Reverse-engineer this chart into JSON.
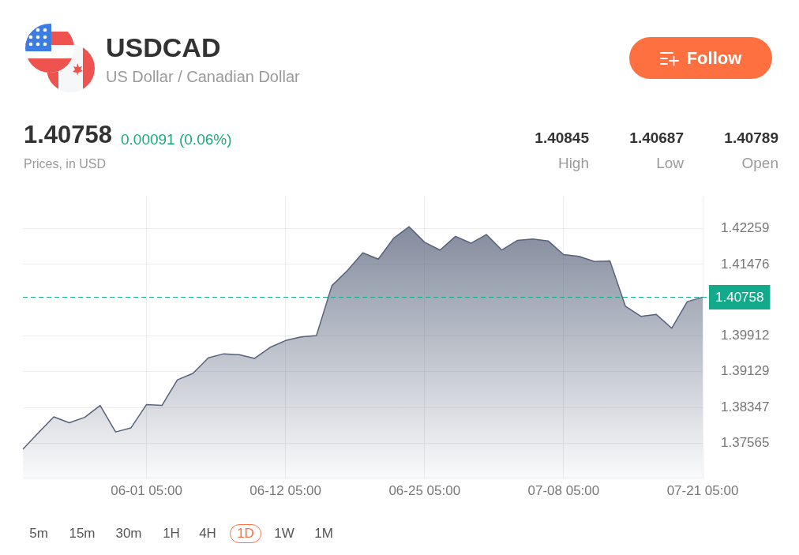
{
  "chart_data": {
    "type": "area",
    "title": "USDCAD",
    "subtitle": "US Dollar / Canadian Dollar",
    "categories": [
      null,
      null,
      null,
      null,
      null,
      null,
      null,
      null,
      "06-01 05:00",
      null,
      null,
      null,
      null,
      null,
      null,
      null,
      null,
      "06-12 05:00",
      null,
      null,
      null,
      null,
      null,
      null,
      null,
      null,
      "06-25 05:00",
      null,
      null,
      null,
      null,
      null,
      null,
      null,
      null,
      "07-08 05:00",
      null,
      null,
      null,
      null,
      null,
      null,
      null,
      null,
      "07-21 05:00"
    ],
    "series": [
      {
        "color": "#56627a",
        "values": [
          1.3743,
          1.3779,
          1.3814,
          1.3801,
          1.3813,
          1.3839,
          1.3781,
          1.379,
          1.3841,
          1.3839,
          1.3895,
          1.3909,
          1.3943,
          1.3952,
          1.395,
          1.3942,
          1.3966,
          1.3981,
          1.3989,
          1.3992,
          1.4101,
          1.4134,
          1.4173,
          1.4159,
          1.4205,
          1.423,
          1.4196,
          1.4179,
          1.4209,
          1.4194,
          1.4213,
          1.4179,
          1.42,
          1.4203,
          1.4199,
          1.4169,
          1.4165,
          1.4154,
          1.4155,
          1.4056,
          1.4034,
          1.4038,
          1.4008,
          1.4066,
          1.4076
        ]
      }
    ],
    "ylim": [
      1.3681,
      1.4296
    ],
    "yticks": [
      1.37565,
      1.38347,
      1.39129,
      1.39912,
      1.41476,
      1.42259
    ],
    "grid": true,
    "ref_lines": [
      {
        "axis": "y",
        "value": 1.40758,
        "label": "1.40758",
        "color": "#13a98b",
        "line_style": "dashed"
      }
    ],
    "annotations": [
      "1.40758",
      "0.00091 (0.06%)",
      "Prices, in USD",
      "1.40845",
      "High",
      "1.40687",
      "Low",
      "1.40789",
      "Open",
      "Follow",
      "5m",
      "15m",
      "30m",
      "1H",
      "4H",
      "1D",
      "1W",
      "1M"
    ]
  }
}
